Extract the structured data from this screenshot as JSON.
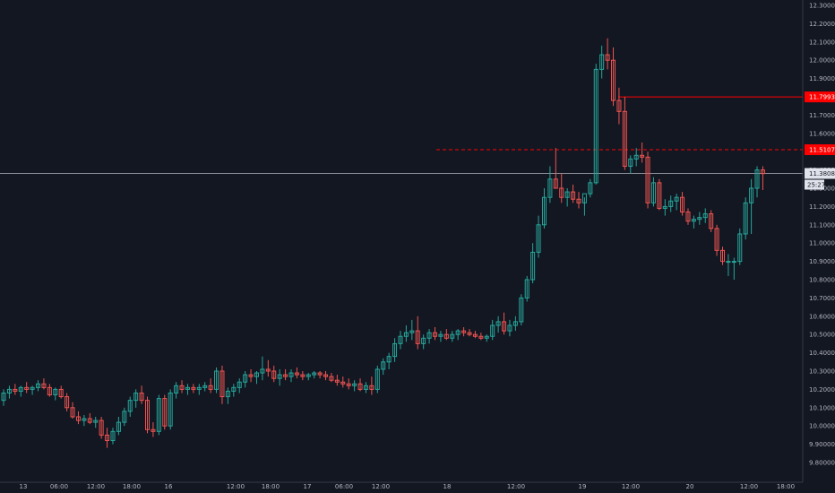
{
  "chart_data": {
    "type": "candlestick",
    "title": "",
    "xlabel": "",
    "ylabel": "",
    "ylim": [
      9.75,
      12.35
    ],
    "y_ticks": [
      "12.30000",
      "12.20000",
      "12.10000",
      "12.00000",
      "11.90000",
      "11.80000",
      "11.70000",
      "11.60000",
      "11.50000",
      "11.40000",
      "11.30000",
      "11.20000",
      "11.10000",
      "11.00000",
      "10.90000",
      "10.80000",
      "10.70000",
      "10.60000",
      "10.50000",
      "10.40000",
      "10.30000",
      "10.20000",
      "10.10000",
      "10.00000",
      "9.90000",
      "9.80000"
    ],
    "x_ticks": [
      "13",
      "06:00",
      "12:00",
      "18:00",
      "16",
      "12:00",
      "18:00",
      "17",
      "06:00",
      "12:00",
      "18",
      "12:00",
      "19",
      "12:00",
      "20",
      "12:00",
      "18:00"
    ],
    "grid": false,
    "up_color": "#26a69a",
    "down_color": "#ef5350",
    "current_price": "11.38081",
    "countdown": "25:27",
    "levels": [
      {
        "price": 11.7993,
        "label": "11.79930",
        "style": "solid",
        "color": "#ff0000"
      },
      {
        "price": 11.5107,
        "label": "11.51070",
        "style": "dashed",
        "color": "#ff0000"
      }
    ],
    "series": [
      {
        "ohlc": [
          [
            10.14,
            10.2,
            10.11,
            10.18
          ],
          [
            10.18,
            10.22,
            10.15,
            10.2
          ],
          [
            10.2,
            10.23,
            10.17,
            10.19
          ],
          [
            10.19,
            10.22,
            10.16,
            10.21
          ],
          [
            10.21,
            10.24,
            10.18,
            10.2
          ],
          [
            10.2,
            10.22,
            10.17,
            10.21
          ],
          [
            10.21,
            10.25,
            10.19,
            10.23
          ],
          [
            10.23,
            10.26,
            10.2,
            10.21
          ],
          [
            10.21,
            10.23,
            10.16,
            10.17
          ],
          [
            10.17,
            10.21,
            10.14,
            10.2
          ],
          [
            10.2,
            10.22,
            10.15,
            10.16
          ],
          [
            10.16,
            10.18,
            10.08,
            10.1
          ],
          [
            10.1,
            10.13,
            10.04,
            10.05
          ],
          [
            10.05,
            10.08,
            10.01,
            10.03
          ],
          [
            10.03,
            10.06,
            10.0,
            10.04
          ],
          [
            10.04,
            10.07,
            10.01,
            10.02
          ],
          [
            10.02,
            10.05,
            9.99,
            10.03
          ],
          [
            10.03,
            10.05,
            9.93,
            9.95
          ],
          [
            9.95,
            9.99,
            9.88,
            9.92
          ],
          [
            9.92,
            9.99,
            9.9,
            9.97
          ],
          [
            9.97,
            10.05,
            9.95,
            10.02
          ],
          [
            10.02,
            10.1,
            10.0,
            10.08
          ],
          [
            10.08,
            10.16,
            10.05,
            10.14
          ],
          [
            10.14,
            10.2,
            10.1,
            10.18
          ],
          [
            10.18,
            10.22,
            10.12,
            10.14
          ],
          [
            10.14,
            10.16,
            9.96,
            9.98
          ],
          [
            9.98,
            10.02,
            9.94,
            9.97
          ],
          [
            9.97,
            10.17,
            9.95,
            10.15
          ],
          [
            10.15,
            10.17,
            9.98,
            10.0
          ],
          [
            10.0,
            10.2,
            9.98,
            10.18
          ],
          [
            10.18,
            10.24,
            10.15,
            10.22
          ],
          [
            10.22,
            10.25,
            10.18,
            10.2
          ],
          [
            10.2,
            10.23,
            10.17,
            10.21
          ],
          [
            10.21,
            10.23,
            10.18,
            10.2
          ],
          [
            10.2,
            10.23,
            10.17,
            10.21
          ],
          [
            10.21,
            10.24,
            10.19,
            10.22
          ],
          [
            10.22,
            10.26,
            10.18,
            10.2
          ],
          [
            10.2,
            10.32,
            10.18,
            10.3
          ],
          [
            10.3,
            10.33,
            10.12,
            10.16
          ],
          [
            10.16,
            10.21,
            10.12,
            10.19
          ],
          [
            10.19,
            10.23,
            10.16,
            10.21
          ],
          [
            10.21,
            10.26,
            10.18,
            10.24
          ],
          [
            10.24,
            10.3,
            10.21,
            10.28
          ],
          [
            10.28,
            10.31,
            10.24,
            10.27
          ],
          [
            10.27,
            10.3,
            10.23,
            10.29
          ],
          [
            10.29,
            10.38,
            10.25,
            10.31
          ],
          [
            10.31,
            10.36,
            10.27,
            10.3
          ],
          [
            10.3,
            10.33,
            10.24,
            10.26
          ],
          [
            10.26,
            10.31,
            10.22,
            10.28
          ],
          [
            10.28,
            10.31,
            10.25,
            10.27
          ],
          [
            10.27,
            10.31,
            10.24,
            10.29
          ],
          [
            10.29,
            10.32,
            10.26,
            10.28
          ],
          [
            10.28,
            10.3,
            10.25,
            10.27
          ],
          [
            10.27,
            10.29,
            10.25,
            10.28
          ],
          [
            10.28,
            10.3,
            10.26,
            10.29
          ],
          [
            10.29,
            10.3,
            10.26,
            10.28
          ],
          [
            10.28,
            10.3,
            10.25,
            10.27
          ],
          [
            10.27,
            10.29,
            10.24,
            10.25
          ],
          [
            10.25,
            10.28,
            10.22,
            10.24
          ],
          [
            10.24,
            10.27,
            10.21,
            10.23
          ],
          [
            10.23,
            10.26,
            10.2,
            10.22
          ],
          [
            10.22,
            10.25,
            10.19,
            10.23
          ],
          [
            10.23,
            10.26,
            10.19,
            10.2
          ],
          [
            10.2,
            10.24,
            10.18,
            10.22
          ],
          [
            10.22,
            10.27,
            10.17,
            10.2
          ],
          [
            10.2,
            10.33,
            10.18,
            10.31
          ],
          [
            10.31,
            10.37,
            10.28,
            10.35
          ],
          [
            10.35,
            10.4,
            10.31,
            10.38
          ],
          [
            10.38,
            10.48,
            10.35,
            10.45
          ],
          [
            10.45,
            10.52,
            10.42,
            10.49
          ],
          [
            10.49,
            10.55,
            10.46,
            10.51
          ],
          [
            10.51,
            10.58,
            10.47,
            10.52
          ],
          [
            10.52,
            10.6,
            10.42,
            10.45
          ],
          [
            10.45,
            10.5,
            10.42,
            10.48
          ],
          [
            10.48,
            10.53,
            10.45,
            10.51
          ],
          [
            10.51,
            10.54,
            10.47,
            10.49
          ],
          [
            10.49,
            10.52,
            10.46,
            10.5
          ],
          [
            10.5,
            10.53,
            10.47,
            10.48
          ],
          [
            10.48,
            10.52,
            10.46,
            10.5
          ],
          [
            10.5,
            10.53,
            10.47,
            10.52
          ],
          [
            10.52,
            10.54,
            10.49,
            10.51
          ],
          [
            10.51,
            10.53,
            10.49,
            10.5
          ],
          [
            10.5,
            10.52,
            10.48,
            10.49
          ],
          [
            10.49,
            10.51,
            10.47,
            10.48
          ],
          [
            10.48,
            10.5,
            10.46,
            10.49
          ],
          [
            10.49,
            10.58,
            10.47,
            10.55
          ],
          [
            10.55,
            10.6,
            10.51,
            10.57
          ],
          [
            10.57,
            10.62,
            10.5,
            10.52
          ],
          [
            10.52,
            10.58,
            10.49,
            10.55
          ],
          [
            10.55,
            10.6,
            10.52,
            10.57
          ],
          [
            10.57,
            10.72,
            10.55,
            10.7
          ],
          [
            10.7,
            10.82,
            10.68,
            10.8
          ],
          [
            10.8,
            11.0,
            10.78,
            10.95
          ],
          [
            10.95,
            11.15,
            10.92,
            11.1
          ],
          [
            11.1,
            11.3,
            11.08,
            11.25
          ],
          [
            11.25,
            11.42,
            11.22,
            11.35
          ],
          [
            11.35,
            11.52,
            11.3,
            11.3
          ],
          [
            11.3,
            11.38,
            11.22,
            11.25
          ],
          [
            11.25,
            11.3,
            11.2,
            11.28
          ],
          [
            11.28,
            11.32,
            11.22,
            11.24
          ],
          [
            11.24,
            11.28,
            11.19,
            11.22
          ],
          [
            11.22,
            11.25,
            11.15,
            11.27
          ],
          [
            11.27,
            11.35,
            11.25,
            11.33
          ],
          [
            11.33,
            11.98,
            11.32,
            11.95
          ],
          [
            11.95,
            12.08,
            11.9,
            12.03
          ],
          [
            12.03,
            12.12,
            11.95,
            12.0
          ],
          [
            12.0,
            12.07,
            11.75,
            11.78
          ],
          [
            11.78,
            11.85,
            11.65,
            11.72
          ],
          [
            11.72,
            11.8,
            11.4,
            11.42
          ],
          [
            11.42,
            11.48,
            11.38,
            11.46
          ],
          [
            11.46,
            11.52,
            11.42,
            11.48
          ],
          [
            11.48,
            11.55,
            11.44,
            11.47
          ],
          [
            11.47,
            11.5,
            11.19,
            11.22
          ],
          [
            11.22,
            11.36,
            11.2,
            11.33
          ],
          [
            11.33,
            11.35,
            11.18,
            11.19
          ],
          [
            11.19,
            11.24,
            11.15,
            11.2
          ],
          [
            11.2,
            11.26,
            11.17,
            11.23
          ],
          [
            11.23,
            11.27,
            11.18,
            11.25
          ],
          [
            11.25,
            11.28,
            11.15,
            11.17
          ],
          [
            11.17,
            11.19,
            11.1,
            11.12
          ],
          [
            11.12,
            11.15,
            11.08,
            11.13
          ],
          [
            11.13,
            11.17,
            11.1,
            11.14
          ],
          [
            11.14,
            11.19,
            11.11,
            11.16
          ],
          [
            11.16,
            11.18,
            11.06,
            11.08
          ],
          [
            11.08,
            11.1,
            10.93,
            10.96
          ],
          [
            10.96,
            10.98,
            10.88,
            10.9
          ],
          [
            10.9,
            10.94,
            10.82,
            10.9
          ],
          [
            10.9,
            10.92,
            10.8,
            10.9
          ],
          [
            10.9,
            11.08,
            10.88,
            11.05
          ],
          [
            11.05,
            11.25,
            11.02,
            11.22
          ],
          [
            11.22,
            11.35,
            11.05,
            11.3
          ],
          [
            11.3,
            11.42,
            11.25,
            11.4
          ],
          [
            11.4,
            11.42,
            11.29,
            11.38
          ]
        ]
      }
    ]
  }
}
